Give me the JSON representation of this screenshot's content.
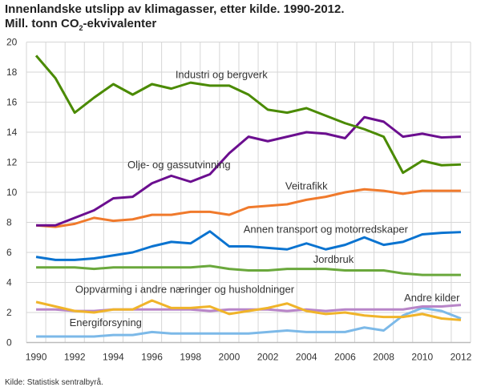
{
  "title": {
    "line1": "Innenlandske utslipp av klimagasser, etter kilde. 1990-2012.",
    "line2_pre": "Mill. tonn CO",
    "line2_sub": "2",
    "line2_post": "-ekvivalenter"
  },
  "source": "Kilde: Statistisk sentralbyrå.",
  "chart_data": {
    "type": "line",
    "title": "Innenlandske utslipp av klimagasser, etter kilde. 1990-2012. Mill. tonn CO2-ekvivalenter",
    "xlim": [
      1989.5,
      2012.5
    ],
    "ylim": [
      0,
      20
    ],
    "grid": true,
    "x": [
      1990,
      1991,
      1992,
      1993,
      1994,
      1995,
      1996,
      1997,
      1998,
      1999,
      2000,
      2001,
      2002,
      2003,
      2004,
      2005,
      2006,
      2007,
      2008,
      2009,
      2010,
      2011,
      2012
    ],
    "x_ticks": [
      1990,
      1992,
      1994,
      1996,
      1998,
      2000,
      2002,
      2004,
      2006,
      2008,
      2010,
      2012
    ],
    "y_ticks": [
      0,
      2,
      4,
      6,
      8,
      10,
      12,
      14,
      16,
      18,
      20
    ],
    "series": [
      {
        "name": "Industri og bergverk",
        "color": "#4a8a00",
        "values": [
          19.1,
          17.6,
          15.3,
          16.3,
          17.2,
          16.5,
          17.2,
          16.9,
          17.3,
          17.1,
          17.1,
          16.5,
          15.5,
          15.3,
          15.6,
          15.1,
          14.6,
          14.2,
          13.7,
          11.3,
          12.1,
          11.8,
          11.85
        ]
      },
      {
        "name": "Olje- og gassutvinning",
        "color": "#6b0e8f",
        "values": [
          7.8,
          7.8,
          8.3,
          8.8,
          9.6,
          9.7,
          10.6,
          11.1,
          10.7,
          11.2,
          12.6,
          13.7,
          13.4,
          13.7,
          14.0,
          13.9,
          13.6,
          15.0,
          14.7,
          13.7,
          13.9,
          13.65,
          13.7
        ]
      },
      {
        "name": "Veitrafikk",
        "color": "#f07a2c",
        "values": [
          7.8,
          7.7,
          7.9,
          8.3,
          8.1,
          8.2,
          8.5,
          8.5,
          8.7,
          8.7,
          8.5,
          9.0,
          9.1,
          9.2,
          9.5,
          9.7,
          10.0,
          10.2,
          10.1,
          9.9,
          10.1,
          10.1,
          10.1
        ]
      },
      {
        "name": "Annen transport og motorredskaper",
        "color": "#0a73d0",
        "values": [
          5.7,
          5.5,
          5.5,
          5.6,
          5.8,
          6.0,
          6.4,
          6.7,
          6.6,
          7.4,
          6.4,
          6.4,
          6.3,
          6.2,
          6.6,
          6.2,
          6.5,
          7.0,
          6.5,
          6.7,
          7.2,
          7.3,
          7.35
        ]
      },
      {
        "name": "Jordbruk",
        "color": "#6aa83c",
        "values": [
          5.0,
          5.0,
          5.0,
          4.9,
          5.0,
          5.0,
          5.0,
          5.0,
          5.0,
          5.1,
          4.9,
          4.8,
          4.8,
          4.9,
          4.9,
          4.9,
          4.8,
          4.8,
          4.8,
          4.6,
          4.5,
          4.5,
          4.5
        ]
      },
      {
        "name": "Oppvarming i andre næringer og husholdninger",
        "color": "#f0b42a",
        "values": [
          2.7,
          2.4,
          2.1,
          2.0,
          2.2,
          2.2,
          2.8,
          2.3,
          2.3,
          2.4,
          1.9,
          2.1,
          2.3,
          2.6,
          2.1,
          1.9,
          2.0,
          1.8,
          1.7,
          1.7,
          1.9,
          1.6,
          1.5
        ]
      },
      {
        "name": "Andre kilder",
        "color": "#b885c8",
        "values": [
          2.2,
          2.2,
          2.1,
          2.1,
          2.2,
          2.2,
          2.2,
          2.2,
          2.2,
          2.1,
          2.2,
          2.2,
          2.2,
          2.1,
          2.2,
          2.1,
          2.2,
          2.2,
          2.2,
          2.2,
          2.4,
          2.4,
          2.5
        ]
      },
      {
        "name": "Energiforsyning",
        "color": "#7cb9e8",
        "values": [
          0.4,
          0.4,
          0.4,
          0.4,
          0.5,
          0.5,
          0.7,
          0.6,
          0.6,
          0.6,
          0.6,
          0.6,
          0.7,
          0.8,
          0.7,
          0.7,
          0.7,
          1.0,
          0.8,
          1.8,
          2.3,
          2.1,
          1.6
        ]
      }
    ],
    "labels": [
      {
        "series": 0,
        "text": "Industri og bergverk",
        "x": 1999.6,
        "y": 17.6
      },
      {
        "series": 1,
        "text": "Olje- og gassutvinning",
        "x": 1997.4,
        "y": 11.6
      },
      {
        "series": 2,
        "text": "Veitrafikk",
        "x": 2004.0,
        "y": 10.2
      },
      {
        "series": 3,
        "text": "Annen transport og motorredskaper",
        "x": 2005.0,
        "y": 7.3
      },
      {
        "series": 4,
        "text": "Jordbruk",
        "x": 2005.4,
        "y": 5.3
      },
      {
        "series": 5,
        "text": "Oppvarming i andre næringer og husholdninger",
        "x": 1997.7,
        "y": 3.3
      },
      {
        "series": 6,
        "text": "Andre kilder",
        "x": 2010.5,
        "y": 2.75
      },
      {
        "series": 7,
        "text": "Energiforsyning",
        "x": 1993.6,
        "y": 1.1
      }
    ]
  }
}
